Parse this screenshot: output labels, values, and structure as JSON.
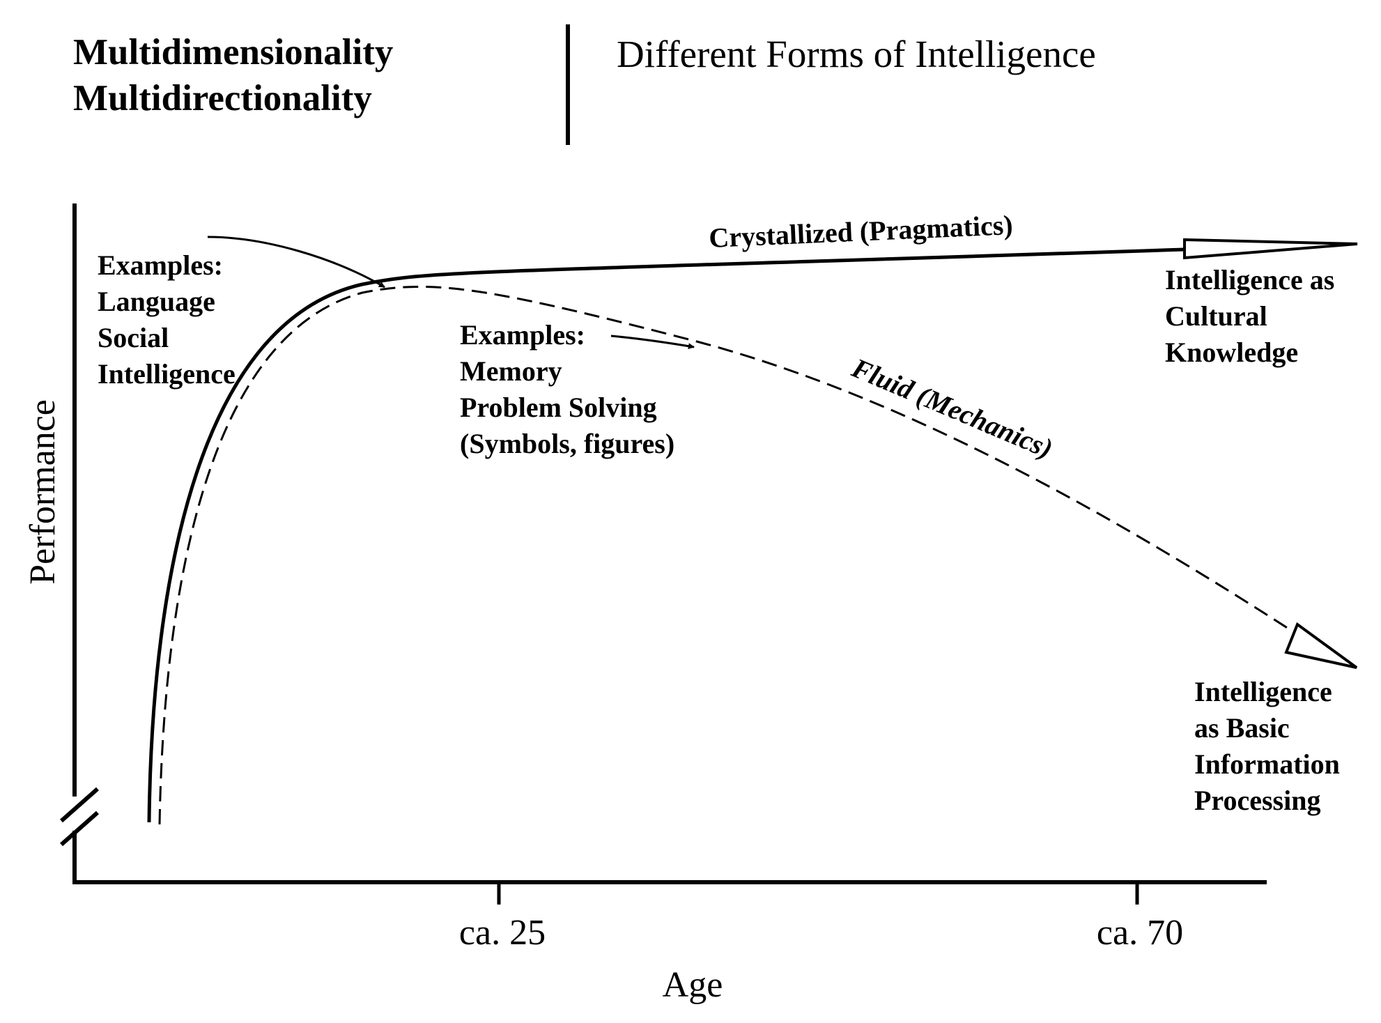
{
  "header": {
    "left_line1": "Multidimensionality",
    "left_line2": "Multidirectionality",
    "right": "Different Forms of Intelligence"
  },
  "axes": {
    "y_label": "Performance",
    "x_label": "Age",
    "ticks": [
      "ca. 25",
      "ca. 70"
    ]
  },
  "crystallized": {
    "label": "Crystallized (Pragmatics)",
    "examples": [
      "Examples:",
      "Language",
      "Social",
      "Intelligence"
    ],
    "outcome": [
      "Intelligence as",
      "Cultural",
      "Knowledge"
    ]
  },
  "fluid": {
    "label": "Fluid (Mechanics)",
    "examples": [
      "Examples:",
      "Memory",
      "Problem Solving",
      "(Symbols, figures)"
    ],
    "outcome": [
      "Intelligence",
      "as Basic",
      "Information",
      "Processing"
    ]
  },
  "colors": {
    "ink": "#000000",
    "paper": "#ffffff"
  }
}
